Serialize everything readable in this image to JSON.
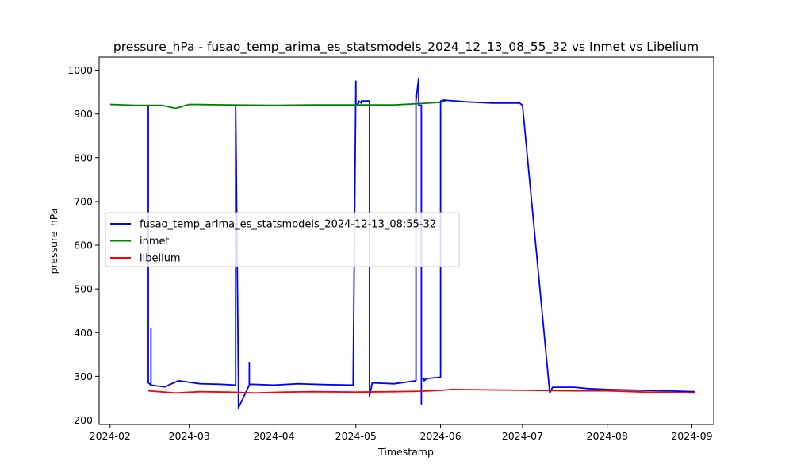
{
  "chart_data": {
    "type": "line",
    "title": "pressure_hPa - fusao_temp_arima_es_statsmodels_2024_12_13_08_55_32 vs Inmet vs Libelium",
    "xlabel": "Timestamp",
    "ylabel": "pressure_hPa",
    "xlim": [
      "2024-01-28",
      "2024-09-09"
    ],
    "ylim": [
      190,
      1030
    ],
    "x_ticks": [
      "2024-02",
      "2024-03",
      "2024-04",
      "2024-05",
      "2024-06",
      "2024-07",
      "2024-08",
      "2024-09"
    ],
    "y_ticks": [
      200,
      300,
      400,
      500,
      600,
      700,
      800,
      900,
      1000
    ],
    "grid": false,
    "legend_position": "center-left",
    "series": [
      {
        "name": "fusao_temp_arima_es_statsmodels_2024-12-13_08:55-32",
        "color": "#0000ff",
        "x": [
          "2024-02-15",
          "2024-02-15",
          "2024-02-16",
          "2024-02-16",
          "2024-02-16",
          "2024-02-21",
          "2024-02-26",
          "2024-03-05",
          "2024-03-12",
          "2024-03-18",
          "2024-03-18",
          "2024-03-19",
          "2024-03-19",
          "2024-03-23",
          "2024-03-23",
          "2024-03-23",
          "2024-04-01",
          "2024-04-10",
          "2024-04-20",
          "2024-04-30",
          "2024-05-01",
          "2024-05-01",
          "2024-05-02",
          "2024-05-02",
          "2024-05-03",
          "2024-05-03",
          "2024-05-06",
          "2024-05-06",
          "2024-05-07",
          "2024-05-15",
          "2024-05-23",
          "2024-05-23",
          "2024-05-23",
          "2024-05-24",
          "2024-05-24",
          "2024-05-24",
          "2024-05-25",
          "2024-05-25",
          "2024-05-25",
          "2024-05-26",
          "2024-05-26",
          "2024-05-27",
          "2024-06-01",
          "2024-06-01",
          "2024-06-02",
          "2024-06-02",
          "2024-06-10",
          "2024-06-20",
          "2024-06-30",
          "2024-07-01",
          "2024-07-11",
          "2024-07-12",
          "2024-07-20",
          "2024-07-25",
          "2024-08-01",
          "2024-08-15",
          "2024-09-02"
        ],
        "values": [
          920,
          285,
          280,
          410,
          280,
          276,
          290,
          283,
          282,
          280,
          920,
          280,
          228,
          280,
          332,
          282,
          280,
          283,
          281,
          280,
          975,
          920,
          925,
          930,
          925,
          930,
          930,
          255,
          285,
          283,
          290,
          945,
          930,
          982,
          920,
          920,
          920,
          237,
          295,
          295,
          290,
          295,
          298,
          930,
          930,
          932,
          928,
          925,
          925,
          920,
          262,
          275,
          275,
          272,
          270,
          268,
          265
        ]
      },
      {
        "name": "inmet",
        "color": "#008000",
        "x": [
          "2024-02-01",
          "2024-02-10",
          "2024-02-20",
          "2024-02-25",
          "2024-03-01",
          "2024-03-15",
          "2024-04-01",
          "2024-04-15",
          "2024-05-01",
          "2024-05-15",
          "2024-05-25",
          "2024-06-01",
          "2024-06-03"
        ],
        "values": [
          922,
          920,
          920,
          913,
          922,
          921,
          920,
          921,
          921,
          921,
          924,
          927,
          929
        ]
      },
      {
        "name": "libelium",
        "color": "#ff0000",
        "x": [
          "2024-02-15",
          "2024-02-25",
          "2024-03-05",
          "2024-03-15",
          "2024-03-25",
          "2024-04-05",
          "2024-04-15",
          "2024-05-01",
          "2024-05-15",
          "2024-05-25",
          "2024-06-01",
          "2024-06-05",
          "2024-07-20",
          "2024-08-01",
          "2024-08-15",
          "2024-09-02"
        ],
        "values": [
          267,
          262,
          265,
          264,
          262,
          264,
          265,
          264,
          265,
          266,
          268,
          270,
          267,
          267,
          264,
          262
        ]
      }
    ]
  }
}
